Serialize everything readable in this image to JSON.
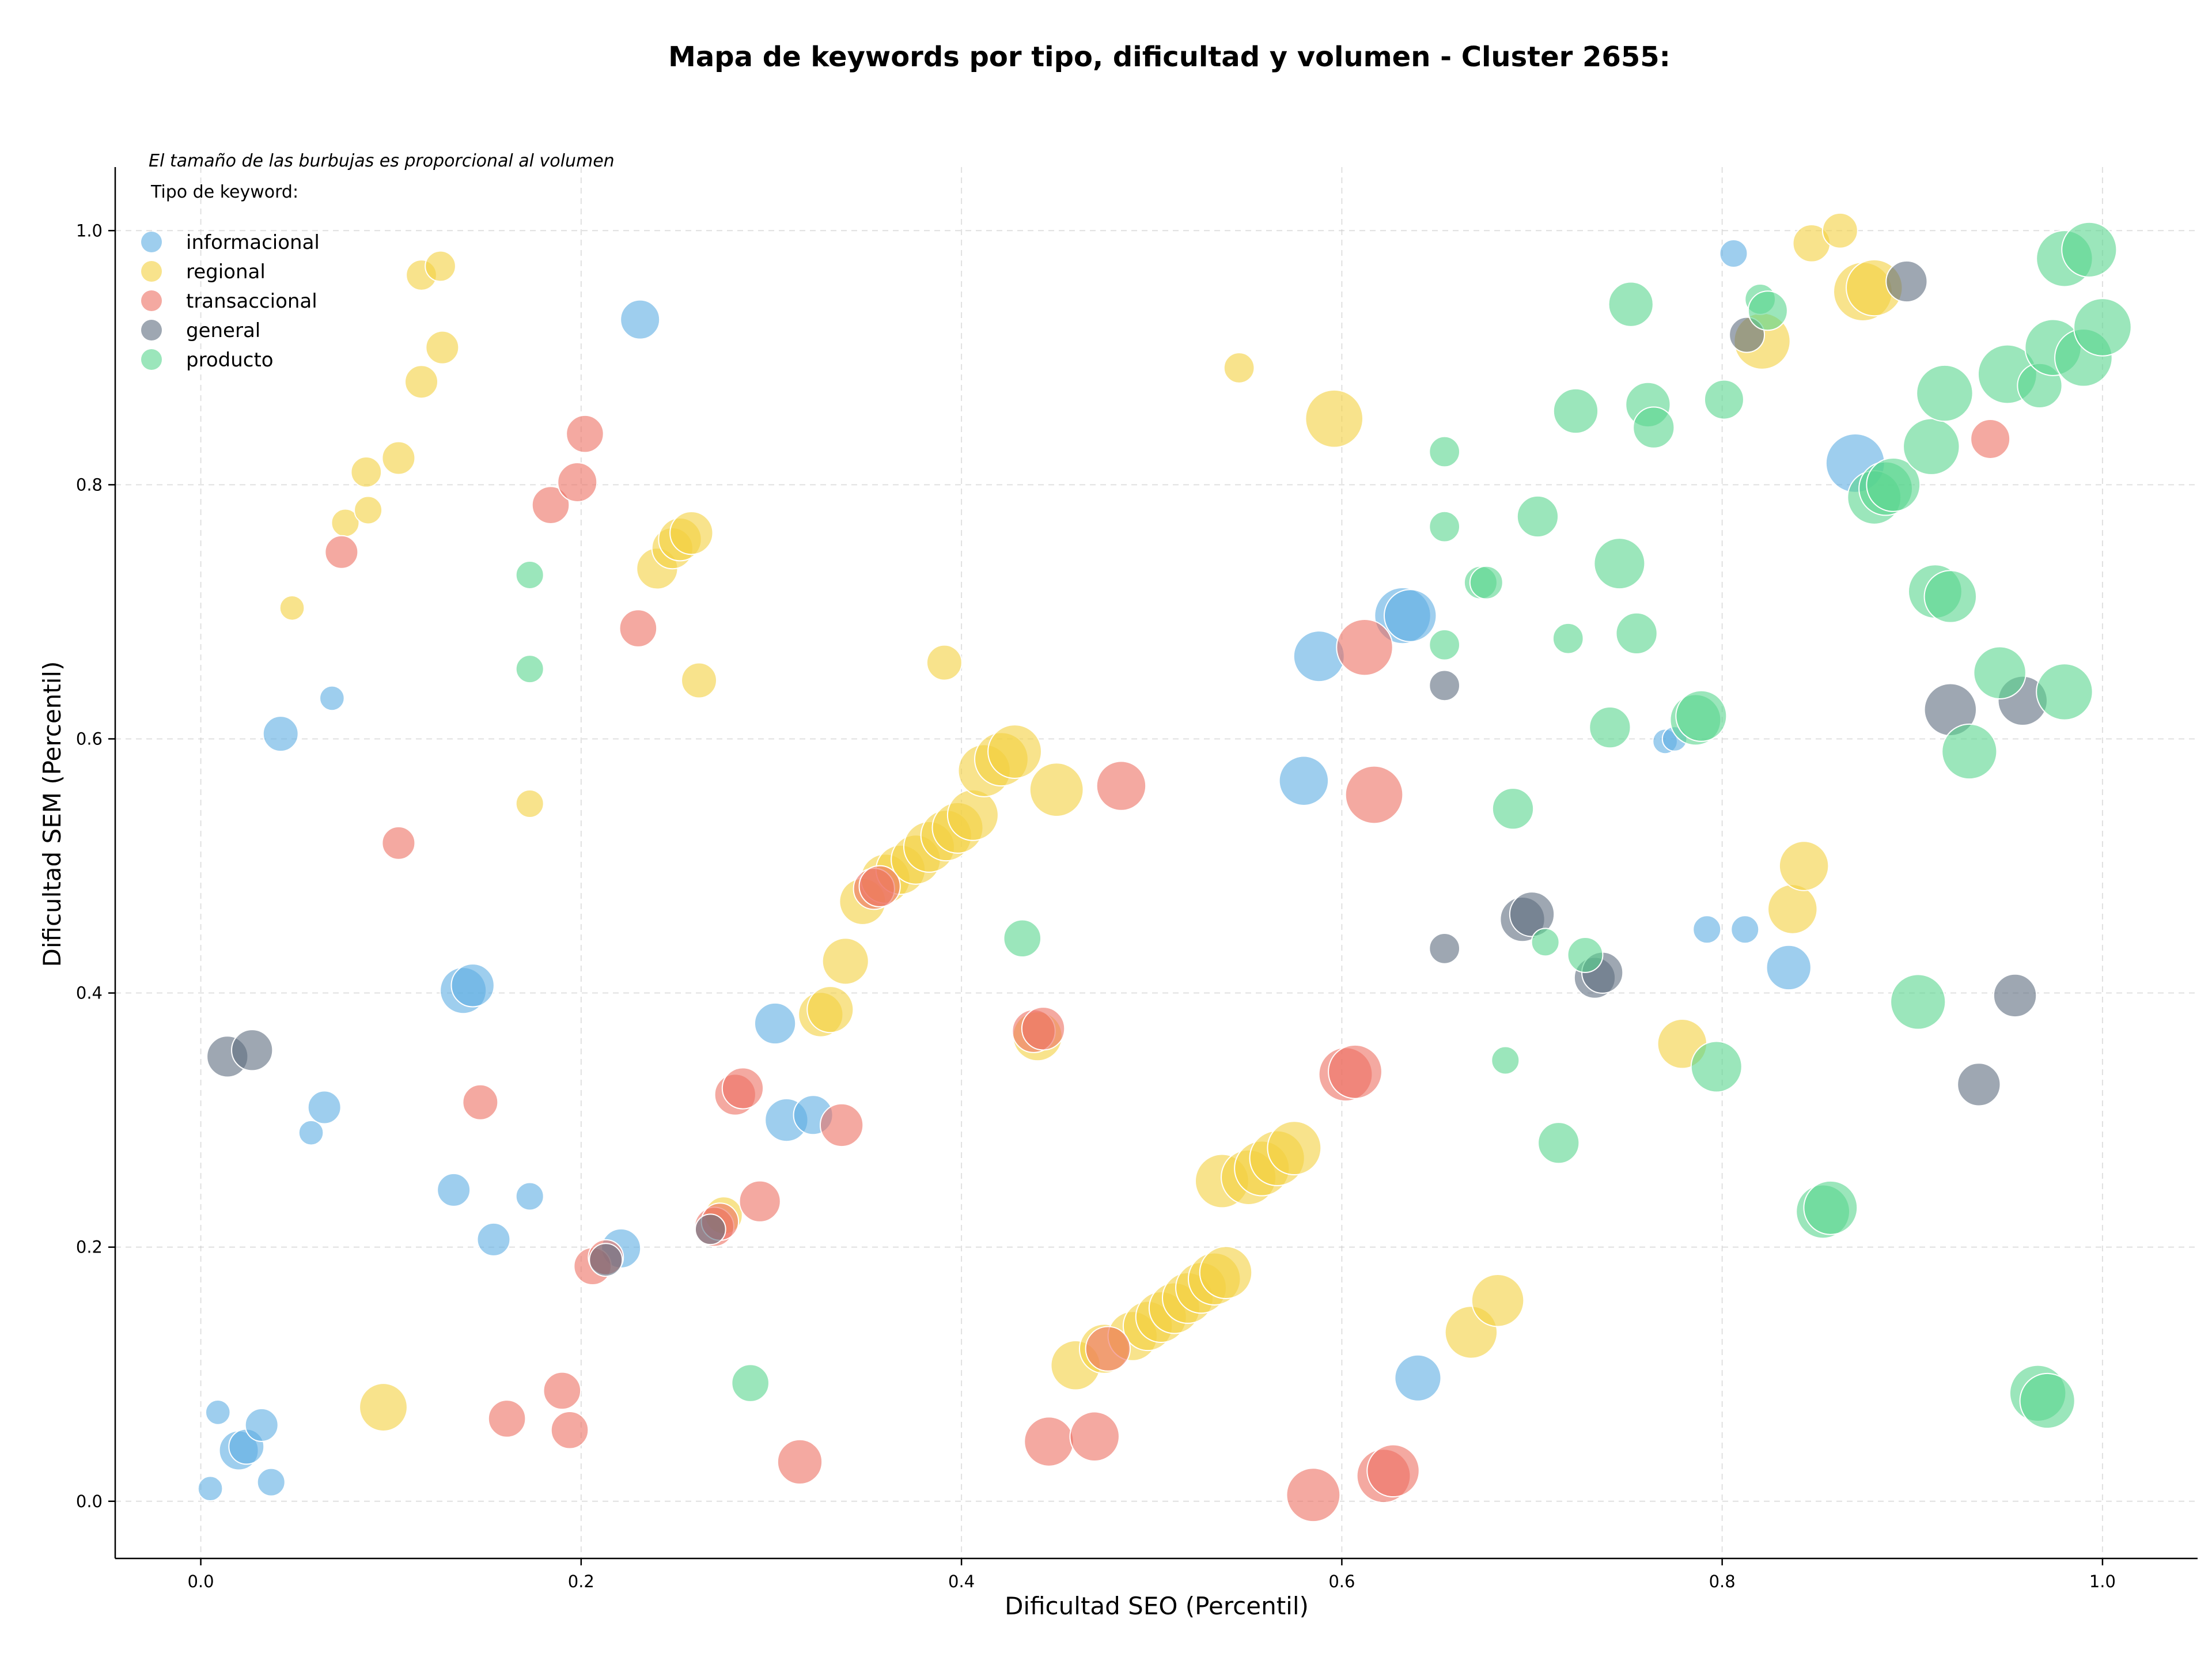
{
  "chart_data": {
    "type": "scatter",
    "title": "Mapa de keywords por tipo, dificultad y volumen - Cluster 2655:",
    "xlabel": "Dificultad SEO (Percentil)",
    "ylabel": "Dificultad SEM (Percentil)",
    "note": "El tamaño de las burbujas es proporcional al volumen",
    "legend_title": "Tipo de keyword:",
    "legend_position": "upper-left",
    "xlim": [
      -0.045,
      1.05
    ],
    "ylim": [
      -0.045,
      1.05
    ],
    "xticks": [
      "0.0",
      "0.2",
      "0.4",
      "0.6",
      "0.8",
      "1.0"
    ],
    "yticks": [
      "0.0",
      "0.2",
      "0.4",
      "0.6",
      "0.8",
      "1.0"
    ],
    "grid": true,
    "series": [
      {
        "name": "informacional",
        "color": "#5DADE2",
        "points": [
          [
            0.005,
            0.01,
            3
          ],
          [
            0.009,
            0.07,
            3
          ],
          [
            0.02,
            0.04,
            9
          ],
          [
            0.024,
            0.043,
            7
          ],
          [
            0.032,
            0.06,
            6
          ],
          [
            0.037,
            0.015,
            4
          ],
          [
            0.042,
            0.604,
            7
          ],
          [
            0.058,
            0.29,
            3
          ],
          [
            0.065,
            0.31,
            6
          ],
          [
            0.069,
            0.632,
            3
          ],
          [
            0.133,
            0.245,
            6
          ],
          [
            0.138,
            0.402,
            13
          ],
          [
            0.143,
            0.406,
            11
          ],
          [
            0.154,
            0.206,
            6
          ],
          [
            0.173,
            0.24,
            4
          ],
          [
            0.221,
            0.199,
            9
          ],
          [
            0.231,
            0.93,
            9
          ],
          [
            0.302,
            0.376,
            10
          ],
          [
            0.308,
            0.3,
            11
          ],
          [
            0.322,
            0.304,
            9
          ],
          [
            0.58,
            0.567,
            15
          ],
          [
            0.588,
            0.665,
            16
          ],
          [
            0.632,
            0.697,
            20
          ],
          [
            0.636,
            0.697,
            17
          ],
          [
            0.64,
            0.097,
            13
          ],
          [
            0.77,
            0.598,
            3
          ],
          [
            0.775,
            0.6,
            3
          ],
          [
            0.806,
            0.982,
            4
          ],
          [
            0.792,
            0.45,
            4
          ],
          [
            0.812,
            0.45,
            4
          ],
          [
            0.835,
            0.42,
            12
          ],
          [
            0.87,
            0.817,
            22
          ]
        ]
      },
      {
        "name": "regional",
        "color": "#F4D03F",
        "points": [
          [
            0.048,
            0.703,
            3
          ],
          [
            0.076,
            0.77,
            4
          ],
          [
            0.087,
            0.81,
            5
          ],
          [
            0.088,
            0.78,
            4
          ],
          [
            0.104,
            0.821,
            6
          ],
          [
            0.116,
            0.881,
            6
          ],
          [
            0.116,
            0.965,
            5
          ],
          [
            0.126,
            0.972,
            5
          ],
          [
            0.127,
            0.908,
            6
          ],
          [
            0.173,
            0.549,
            4
          ],
          [
            0.096,
            0.074,
            14
          ],
          [
            0.24,
            0.734,
            10
          ],
          [
            0.248,
            0.75,
            10
          ],
          [
            0.252,
            0.757,
            11
          ],
          [
            0.258,
            0.762,
            11
          ],
          [
            0.262,
            0.646,
            7
          ],
          [
            0.275,
            0.225,
            8
          ],
          [
            0.326,
            0.383,
            12
          ],
          [
            0.331,
            0.387,
            13
          ],
          [
            0.339,
            0.425,
            13
          ],
          [
            0.348,
            0.472,
            13
          ],
          [
            0.36,
            0.49,
            15
          ],
          [
            0.368,
            0.497,
            15
          ],
          [
            0.376,
            0.505,
            15
          ],
          [
            0.383,
            0.515,
            16
          ],
          [
            0.392,
            0.524,
            16
          ],
          [
            0.398,
            0.53,
            16
          ],
          [
            0.406,
            0.54,
            16
          ],
          [
            0.412,
            0.575,
            17
          ],
          [
            0.421,
            0.584,
            18
          ],
          [
            0.428,
            0.59,
            18
          ],
          [
            0.391,
            0.66,
            7
          ],
          [
            0.44,
            0.366,
            15
          ],
          [
            0.45,
            0.56,
            18
          ],
          [
            0.46,
            0.107,
            15
          ],
          [
            0.475,
            0.12,
            15
          ],
          [
            0.49,
            0.13,
            15
          ],
          [
            0.498,
            0.138,
            15
          ],
          [
            0.505,
            0.145,
            16
          ],
          [
            0.512,
            0.152,
            16
          ],
          [
            0.519,
            0.16,
            16
          ],
          [
            0.526,
            0.168,
            16
          ],
          [
            0.533,
            0.175,
            17
          ],
          [
            0.539,
            0.18,
            17
          ],
          [
            0.537,
            0.252,
            18
          ],
          [
            0.551,
            0.255,
            19
          ],
          [
            0.558,
            0.262,
            19
          ],
          [
            0.566,
            0.27,
            19
          ],
          [
            0.575,
            0.278,
            18
          ],
          [
            0.546,
            0.892,
            5
          ],
          [
            0.596,
            0.852,
            21
          ],
          [
            0.668,
            0.133,
            17
          ],
          [
            0.682,
            0.158,
            17
          ],
          [
            0.779,
            0.36,
            15
          ],
          [
            0.821,
            0.913,
            20
          ],
          [
            0.837,
            0.466,
            15
          ],
          [
            0.843,
            0.5,
            15
          ],
          [
            0.847,
            0.99,
            8
          ],
          [
            0.862,
            1.0,
            7
          ],
          [
            0.874,
            0.952,
            22
          ],
          [
            0.88,
            0.955,
            20
          ]
        ]
      },
      {
        "name": "transaccional",
        "color": "#EC7063",
        "points": [
          [
            0.074,
            0.747,
            6
          ],
          [
            0.104,
            0.518,
            6
          ],
          [
            0.147,
            0.314,
            7
          ],
          [
            0.161,
            0.065,
            8
          ],
          [
            0.184,
            0.784,
            8
          ],
          [
            0.19,
            0.087,
            8
          ],
          [
            0.194,
            0.056,
            8
          ],
          [
            0.198,
            0.802,
            9
          ],
          [
            0.202,
            0.84,
            8
          ],
          [
            0.206,
            0.185,
            8
          ],
          [
            0.213,
            0.192,
            7
          ],
          [
            0.23,
            0.687,
            8
          ],
          [
            0.27,
            0.216,
            9
          ],
          [
            0.273,
            0.22,
            8
          ],
          [
            0.281,
            0.32,
            10
          ],
          [
            0.285,
            0.325,
            10
          ],
          [
            0.294,
            0.236,
            10
          ],
          [
            0.315,
            0.031,
            12
          ],
          [
            0.337,
            0.296,
            11
          ],
          [
            0.354,
            0.482,
            10
          ],
          [
            0.357,
            0.484,
            10
          ],
          [
            0.438,
            0.37,
            11
          ],
          [
            0.443,
            0.372,
            11
          ],
          [
            0.446,
            0.047,
            15
          ],
          [
            0.47,
            0.051,
            15
          ],
          [
            0.477,
            0.12,
            12
          ],
          [
            0.484,
            0.563,
            15
          ],
          [
            0.585,
            0.005,
            18
          ],
          [
            0.602,
            0.336,
            18
          ],
          [
            0.607,
            0.338,
            18
          ],
          [
            0.612,
            0.672,
            20
          ],
          [
            0.617,
            0.556,
            21
          ],
          [
            0.622,
            0.02,
            18
          ],
          [
            0.627,
            0.024,
            17
          ],
          [
            0.941,
            0.836,
            9
          ]
        ]
      },
      {
        "name": "general",
        "color": "#5D6D7E",
        "points": [
          [
            0.014,
            0.35,
            10
          ],
          [
            0.027,
            0.355,
            10
          ],
          [
            0.213,
            0.19,
            6
          ],
          [
            0.268,
            0.214,
            5
          ],
          [
            0.654,
            0.642,
            5
          ],
          [
            0.654,
            0.435,
            5
          ],
          [
            0.695,
            0.458,
            12
          ],
          [
            0.7,
            0.462,
            12
          ],
          [
            0.733,
            0.412,
            10
          ],
          [
            0.737,
            0.416,
            10
          ],
          [
            0.813,
            0.918,
            7
          ],
          [
            0.897,
            0.96,
            10
          ],
          [
            0.92,
            0.623,
            17
          ],
          [
            0.935,
            0.328,
            11
          ],
          [
            0.954,
            0.398,
            11
          ],
          [
            0.958,
            0.63,
            15
          ]
        ]
      },
      {
        "name": "producto",
        "color": "#58D68D",
        "points": [
          [
            0.173,
            0.729,
            4
          ],
          [
            0.173,
            0.655,
            4
          ],
          [
            0.289,
            0.093,
            8
          ],
          [
            0.432,
            0.443,
            8
          ],
          [
            0.654,
            0.826,
            5
          ],
          [
            0.654,
            0.767,
            5
          ],
          [
            0.654,
            0.674,
            5
          ],
          [
            0.673,
            0.723,
            6
          ],
          [
            0.676,
            0.723,
            6
          ],
          [
            0.686,
            0.347,
            4
          ],
          [
            0.69,
            0.545,
            10
          ],
          [
            0.703,
            0.775,
            10
          ],
          [
            0.707,
            0.44,
            4
          ],
          [
            0.714,
            0.282,
            10
          ],
          [
            0.719,
            0.679,
            5
          ],
          [
            0.723,
            0.858,
            12
          ],
          [
            0.728,
            0.43,
            7
          ],
          [
            0.741,
            0.609,
            10
          ],
          [
            0.746,
            0.738,
            16
          ],
          [
            0.752,
            0.942,
            12
          ],
          [
            0.755,
            0.683,
            10
          ],
          [
            0.761,
            0.863,
            12
          ],
          [
            0.764,
            0.845,
            10
          ],
          [
            0.786,
            0.615,
            16
          ],
          [
            0.789,
            0.618,
            16
          ],
          [
            0.797,
            0.342,
            16
          ],
          [
            0.801,
            0.867,
            9
          ],
          [
            0.82,
            0.946,
            5
          ],
          [
            0.824,
            0.937,
            9
          ],
          [
            0.853,
            0.228,
            18
          ],
          [
            0.857,
            0.231,
            18
          ],
          [
            0.88,
            0.79,
            18
          ],
          [
            0.886,
            0.797,
            18
          ],
          [
            0.89,
            0.8,
            18
          ],
          [
            0.903,
            0.393,
            19
          ],
          [
            0.91,
            0.83,
            20
          ],
          [
            0.912,
            0.716,
            18
          ],
          [
            0.917,
            0.872,
            20
          ],
          [
            0.92,
            0.712,
            17
          ],
          [
            0.93,
            0.59,
            19
          ],
          [
            0.946,
            0.652,
            17
          ],
          [
            0.95,
            0.887,
            22
          ],
          [
            0.967,
            0.878,
            12
          ],
          [
            0.966,
            0.085,
            20
          ],
          [
            0.971,
            0.079,
            19
          ],
          [
            0.974,
            0.908,
            20
          ],
          [
            0.98,
            0.978,
            20
          ],
          [
            0.98,
            0.637,
            20
          ],
          [
            0.99,
            0.9,
            21
          ],
          [
            0.993,
            0.985,
            19
          ],
          [
            1.0,
            0.924,
            21
          ]
        ]
      }
    ]
  }
}
